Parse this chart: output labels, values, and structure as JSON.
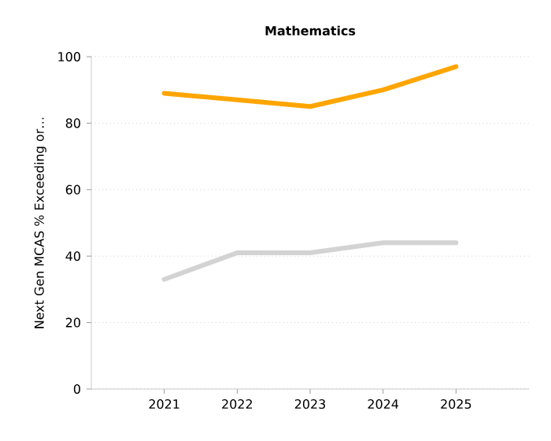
{
  "chart_data": {
    "type": "line",
    "title": "Mathematics",
    "ylabel": "Next Gen MCAS % Exceeding or…",
    "x": [
      2021,
      2022,
      2023,
      2024,
      2025
    ],
    "series": [
      {
        "color": "#ffa500",
        "values": [
          89,
          87,
          85,
          90,
          97
        ]
      },
      {
        "color": "#d3d3d3",
        "values": [
          33,
          41,
          41,
          44,
          44
        ]
      }
    ],
    "xlim": [
      2020,
      2026
    ],
    "xticks": [
      2021,
      2022,
      2023,
      2024,
      2025
    ],
    "ylim": [
      0,
      100
    ],
    "yticks": [
      0,
      20,
      40,
      60,
      80,
      100
    ],
    "grid": "y",
    "line_style": "solid",
    "marker": "none"
  }
}
